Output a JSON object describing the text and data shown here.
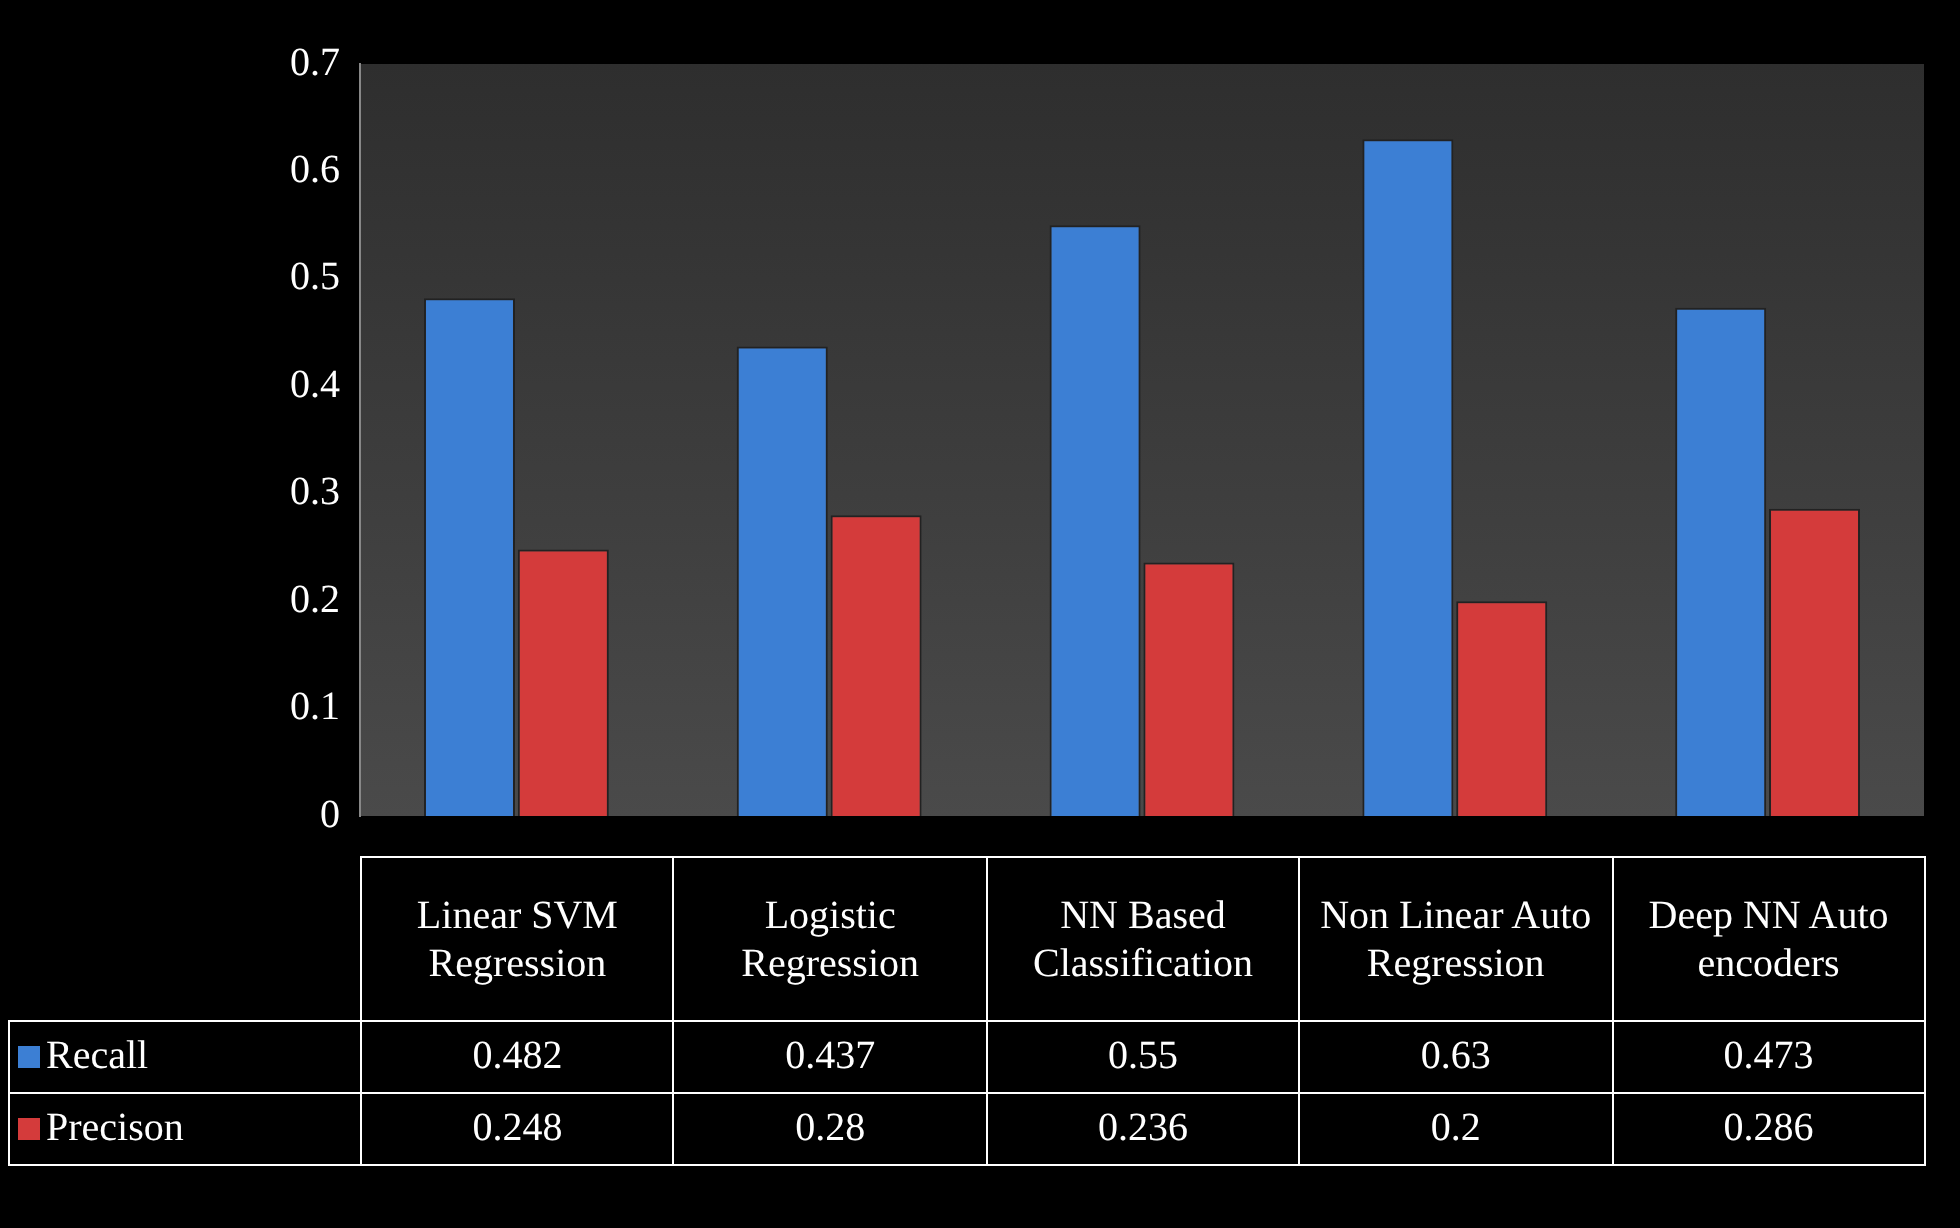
{
  "chart_data": {
    "type": "bar",
    "categories": [
      "Linear SVM Regression",
      "Logistic Regression",
      "NN Based Classification",
      "Non Linear Auto Regression",
      "Deep NN Auto encoders"
    ],
    "series": [
      {
        "name": "Recall",
        "color": "#3c7fd4",
        "values": [
          0.482,
          0.437,
          0.55,
          0.63,
          0.473
        ]
      },
      {
        "name": "Precison",
        "color": "#d43b3b",
        "values": [
          0.248,
          0.28,
          0.236,
          0.2,
          0.286
        ]
      }
    ],
    "ylim": [
      0,
      0.7
    ],
    "yticks": [
      0,
      0.1,
      0.2,
      0.3,
      0.4,
      0.5,
      0.6,
      0.7
    ],
    "grid": false,
    "legend": "bottom",
    "data_labels": true
  }
}
